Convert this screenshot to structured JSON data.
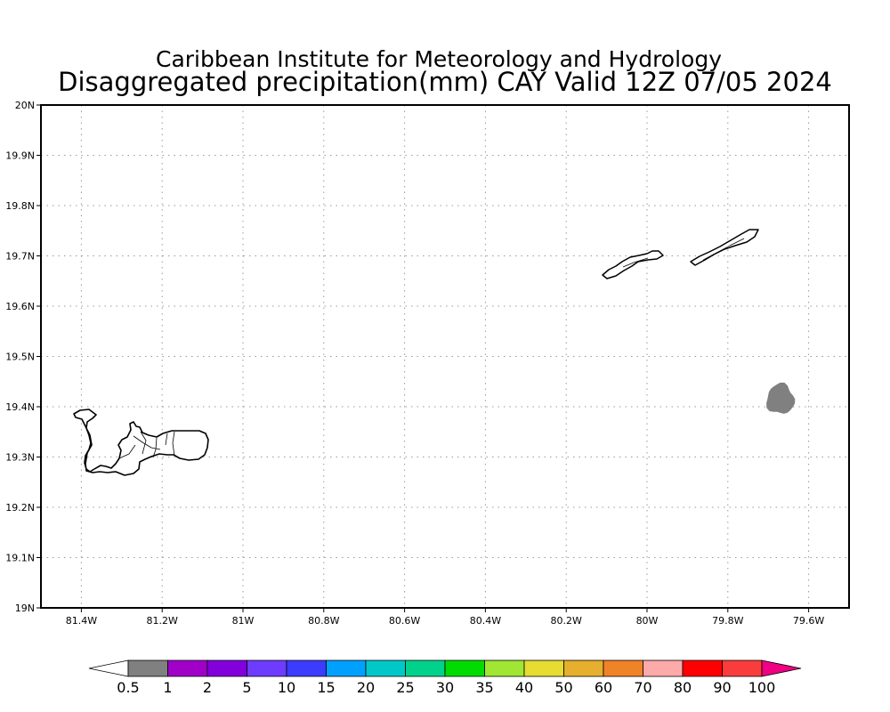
{
  "title": {
    "line1": "Caribbean Institute for Meteorology and Hydrology",
    "line2": "Disaggregated precipitation(mm) CAY Valid 12Z 07/05 2024"
  },
  "map": {
    "lon_range": [
      -81.5,
      -79.5
    ],
    "lat_range": [
      19.0,
      20.0
    ],
    "grid": "dotted",
    "lon_ticks": [
      {
        "value": -81.4,
        "label": "81.4W"
      },
      {
        "value": -81.2,
        "label": "81.2W"
      },
      {
        "value": -81.0,
        "label": "81W"
      },
      {
        "value": -80.8,
        "label": "80.8W"
      },
      {
        "value": -80.6,
        "label": "80.6W"
      },
      {
        "value": -80.4,
        "label": "80.4W"
      },
      {
        "value": -80.2,
        "label": "80.2W"
      },
      {
        "value": -80.0,
        "label": "80W"
      },
      {
        "value": -79.8,
        "label": "79.8W"
      },
      {
        "value": -79.6,
        "label": "79.6W"
      }
    ],
    "lat_ticks": [
      {
        "value": 20.0,
        "label": "20N"
      },
      {
        "value": 19.9,
        "label": "19.9N"
      },
      {
        "value": 19.8,
        "label": "19.8N"
      },
      {
        "value": 19.7,
        "label": "19.7N"
      },
      {
        "value": 19.6,
        "label": "19.6N"
      },
      {
        "value": 19.5,
        "label": "19.5N"
      },
      {
        "value": 19.4,
        "label": "19.4N"
      },
      {
        "value": 19.3,
        "label": "19.3N"
      },
      {
        "value": 19.2,
        "label": "19.2N"
      },
      {
        "value": 19.1,
        "label": "19.1N"
      },
      {
        "value": 19.0,
        "label": "19N"
      }
    ],
    "precip_area": {
      "lon": -79.67,
      "lat": 19.415,
      "color": "#808080",
      "range_mm": "0.5-1"
    }
  },
  "colorbar": {
    "colors": [
      "#808080",
      "#a000c8",
      "#8200dc",
      "#6e3cff",
      "#3c3cff",
      "#00a0ff",
      "#00c8c8",
      "#00d28c",
      "#00dc00",
      "#a0e632",
      "#e6dc32",
      "#e6af2d",
      "#f08228",
      "#ffaaaa",
      "#ff0000",
      "#fa3c3c"
    ],
    "over_color": "#f00082",
    "labels": [
      "0.5",
      "1",
      "2",
      "5",
      "10",
      "15",
      "20",
      "25",
      "30",
      "35",
      "40",
      "50",
      "60",
      "70",
      "80",
      "90",
      "100"
    ]
  }
}
